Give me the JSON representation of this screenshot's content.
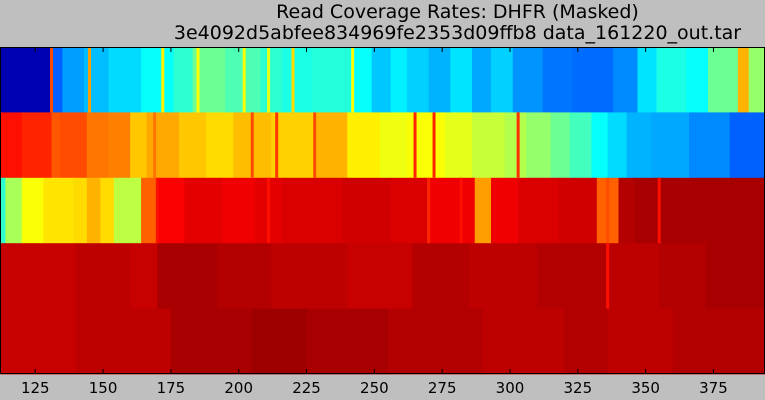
{
  "chart_data": {
    "type": "heatmap",
    "title": "Read Coverage Rates: DHFR (Masked)",
    "subtitle": "3e4092d5abfee834969fe2353d09ffb8  data_161220_out.tar",
    "xlabel": "",
    "ylabel": "",
    "colormap": "jet",
    "value_range": [
      0,
      1
    ],
    "xlim": [
      112,
      394
    ],
    "x_ticks": [
      125,
      150,
      175,
      200,
      225,
      250,
      275,
      300,
      325,
      350,
      375
    ],
    "x_tick_labels": [
      "125",
      "150",
      "175",
      "200",
      "225",
      "250",
      "275",
      "300",
      "325",
      "350",
      "375"
    ],
    "rows": [
      {
        "segments": [
          {
            "start": 112,
            "end": 131,
            "value": 0.05
          },
          {
            "start": 131,
            "end": 135,
            "value": 0.22
          },
          {
            "start": 135,
            "end": 143,
            "value": 0.28
          },
          {
            "start": 143,
            "end": 152,
            "value": 0.31
          },
          {
            "start": 152,
            "end": 164,
            "value": 0.34
          },
          {
            "start": 164,
            "end": 176,
            "value": 0.38
          },
          {
            "start": 176,
            "end": 183,
            "value": 0.42
          },
          {
            "start": 183,
            "end": 195,
            "value": 0.48
          },
          {
            "start": 195,
            "end": 208,
            "value": 0.45
          },
          {
            "start": 208,
            "end": 216,
            "value": 0.42
          },
          {
            "start": 216,
            "end": 227,
            "value": 0.4
          },
          {
            "start": 227,
            "end": 241,
            "value": 0.41
          },
          {
            "start": 241,
            "end": 249,
            "value": 0.38
          },
          {
            "start": 249,
            "end": 256,
            "value": 0.32
          },
          {
            "start": 256,
            "end": 262,
            "value": 0.36
          },
          {
            "start": 262,
            "end": 270,
            "value": 0.33
          },
          {
            "start": 270,
            "end": 278,
            "value": 0.3
          },
          {
            "start": 278,
            "end": 286,
            "value": 0.35
          },
          {
            "start": 286,
            "end": 293,
            "value": 0.29
          },
          {
            "start": 293,
            "end": 301,
            "value": 0.33
          },
          {
            "start": 301,
            "end": 312,
            "value": 0.27
          },
          {
            "start": 312,
            "end": 323,
            "value": 0.24
          },
          {
            "start": 323,
            "end": 338,
            "value": 0.23
          },
          {
            "start": 338,
            "end": 347,
            "value": 0.26
          },
          {
            "start": 347,
            "end": 354,
            "value": 0.35
          },
          {
            "start": 354,
            "end": 365,
            "value": 0.4
          },
          {
            "start": 365,
            "end": 373,
            "value": 0.38
          },
          {
            "start": 373,
            "end": 384,
            "value": 0.48
          },
          {
            "start": 384,
            "end": 388,
            "value": 0.7
          },
          {
            "start": 388,
            "end": 394,
            "value": 0.52
          }
        ]
      },
      {
        "segments": [
          {
            "start": 112,
            "end": 120,
            "value": 0.86
          },
          {
            "start": 120,
            "end": 131,
            "value": 0.84
          },
          {
            "start": 131,
            "end": 134,
            "value": 0.79
          },
          {
            "start": 134,
            "end": 144,
            "value": 0.8
          },
          {
            "start": 144,
            "end": 152,
            "value": 0.76
          },
          {
            "start": 152,
            "end": 160,
            "value": 0.75
          },
          {
            "start": 160,
            "end": 166,
            "value": 0.68
          },
          {
            "start": 166,
            "end": 178,
            "value": 0.71
          },
          {
            "start": 178,
            "end": 188,
            "value": 0.68
          },
          {
            "start": 188,
            "end": 198,
            "value": 0.66
          },
          {
            "start": 198,
            "end": 212,
            "value": 0.69
          },
          {
            "start": 212,
            "end": 228,
            "value": 0.67
          },
          {
            "start": 228,
            "end": 240,
            "value": 0.7
          },
          {
            "start": 240,
            "end": 252,
            "value": 0.64
          },
          {
            "start": 252,
            "end": 262,
            "value": 0.61
          },
          {
            "start": 262,
            "end": 276,
            "value": 0.62
          },
          {
            "start": 276,
            "end": 286,
            "value": 0.6
          },
          {
            "start": 286,
            "end": 298,
            "value": 0.57
          },
          {
            "start": 298,
            "end": 306,
            "value": 0.55
          },
          {
            "start": 306,
            "end": 315,
            "value": 0.52
          },
          {
            "start": 315,
            "end": 322,
            "value": 0.48
          },
          {
            "start": 322,
            "end": 330,
            "value": 0.44
          },
          {
            "start": 330,
            "end": 336,
            "value": 0.38
          },
          {
            "start": 336,
            "end": 343,
            "value": 0.34
          },
          {
            "start": 343,
            "end": 352,
            "value": 0.3
          },
          {
            "start": 352,
            "end": 366,
            "value": 0.29
          },
          {
            "start": 366,
            "end": 381,
            "value": 0.26
          },
          {
            "start": 381,
            "end": 394,
            "value": 0.22
          }
        ]
      },
      {
        "segments": [
          {
            "start": 112,
            "end": 114,
            "value": 0.42
          },
          {
            "start": 114,
            "end": 120,
            "value": 0.54
          },
          {
            "start": 120,
            "end": 128,
            "value": 0.62
          },
          {
            "start": 128,
            "end": 139,
            "value": 0.65
          },
          {
            "start": 139,
            "end": 144,
            "value": 0.66
          },
          {
            "start": 144,
            "end": 149,
            "value": 0.7
          },
          {
            "start": 149,
            "end": 154,
            "value": 0.66
          },
          {
            "start": 154,
            "end": 164,
            "value": 0.56
          },
          {
            "start": 164,
            "end": 170,
            "value": 0.78
          },
          {
            "start": 170,
            "end": 180,
            "value": 0.88
          },
          {
            "start": 180,
            "end": 194,
            "value": 0.9
          },
          {
            "start": 194,
            "end": 206,
            "value": 0.89
          },
          {
            "start": 206,
            "end": 216,
            "value": 0.9
          },
          {
            "start": 216,
            "end": 238,
            "value": 0.91
          },
          {
            "start": 238,
            "end": 256,
            "value": 0.92
          },
          {
            "start": 256,
            "end": 270,
            "value": 0.91
          },
          {
            "start": 270,
            "end": 287,
            "value": 0.89
          },
          {
            "start": 287,
            "end": 293,
            "value": 0.72
          },
          {
            "start": 293,
            "end": 303,
            "value": 0.89
          },
          {
            "start": 303,
            "end": 318,
            "value": 0.91
          },
          {
            "start": 318,
            "end": 332,
            "value": 0.92
          },
          {
            "start": 332,
            "end": 340,
            "value": 0.78
          },
          {
            "start": 340,
            "end": 346,
            "value": 0.95
          },
          {
            "start": 346,
            "end": 370,
            "value": 0.96
          },
          {
            "start": 370,
            "end": 394,
            "value": 0.96
          }
        ]
      },
      {
        "segments": [
          {
            "start": 112,
            "end": 140,
            "value": 0.93
          },
          {
            "start": 140,
            "end": 160,
            "value": 0.94
          },
          {
            "start": 160,
            "end": 170,
            "value": 0.93
          },
          {
            "start": 170,
            "end": 192,
            "value": 0.96
          },
          {
            "start": 192,
            "end": 212,
            "value": 0.95
          },
          {
            "start": 212,
            "end": 240,
            "value": 0.94
          },
          {
            "start": 240,
            "end": 264,
            "value": 0.93
          },
          {
            "start": 264,
            "end": 285,
            "value": 0.95
          },
          {
            "start": 285,
            "end": 310,
            "value": 0.94
          },
          {
            "start": 310,
            "end": 336,
            "value": 0.95
          },
          {
            "start": 336,
            "end": 355,
            "value": 0.94
          },
          {
            "start": 355,
            "end": 372,
            "value": 0.95
          },
          {
            "start": 372,
            "end": 394,
            "value": 0.96
          }
        ]
      },
      {
        "segments": [
          {
            "start": 112,
            "end": 140,
            "value": 0.93
          },
          {
            "start": 140,
            "end": 175,
            "value": 0.94
          },
          {
            "start": 175,
            "end": 205,
            "value": 0.96
          },
          {
            "start": 205,
            "end": 225,
            "value": 0.97
          },
          {
            "start": 225,
            "end": 255,
            "value": 0.96
          },
          {
            "start": 255,
            "end": 290,
            "value": 0.95
          },
          {
            "start": 290,
            "end": 320,
            "value": 0.94
          },
          {
            "start": 320,
            "end": 336,
            "value": 0.95
          },
          {
            "start": 336,
            "end": 360,
            "value": 0.94
          },
          {
            "start": 360,
            "end": 394,
            "value": 0.95
          }
        ]
      }
    ],
    "highlights": [
      {
        "row": 1,
        "x": 131,
        "value": 0.8
      },
      {
        "row": 1,
        "x": 145,
        "value": 0.72
      },
      {
        "row": 1,
        "x": 172,
        "value": 0.64
      },
      {
        "row": 1,
        "x": 185,
        "value": 0.62
      },
      {
        "row": 1,
        "x": 202,
        "value": 0.62
      },
      {
        "row": 1,
        "x": 211,
        "value": 0.6
      },
      {
        "row": 1,
        "x": 220,
        "value": 0.66
      },
      {
        "row": 1,
        "x": 242,
        "value": 0.62
      },
      {
        "row": 2,
        "x": 169,
        "value": 0.76
      },
      {
        "row": 2,
        "x": 205,
        "value": 0.8
      },
      {
        "row": 2,
        "x": 214,
        "value": 0.82
      },
      {
        "row": 2,
        "x": 228,
        "value": 0.8
      },
      {
        "row": 2,
        "x": 265,
        "value": 0.84
      },
      {
        "row": 2,
        "x": 272,
        "value": 0.84
      },
      {
        "row": 2,
        "x": 303,
        "value": 0.83
      },
      {
        "row": 3,
        "x": 170,
        "value": 0.86
      },
      {
        "row": 3,
        "x": 211,
        "value": 0.86
      },
      {
        "row": 3,
        "x": 270,
        "value": 0.84
      },
      {
        "row": 3,
        "x": 282,
        "value": 0.86
      },
      {
        "row": 3,
        "x": 336,
        "value": 0.8
      },
      {
        "row": 3,
        "x": 355,
        "value": 0.86
      },
      {
        "row": 4,
        "x": 336,
        "value": 0.86
      }
    ]
  }
}
